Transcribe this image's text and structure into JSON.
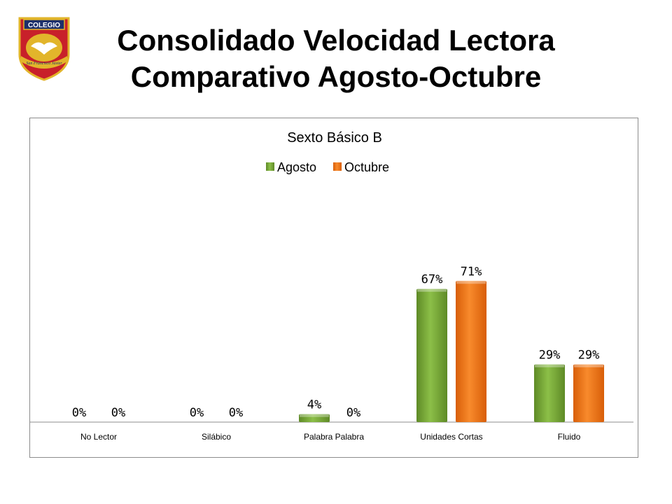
{
  "slide": {
    "title_line1": "Consolidado Velocidad Lectora",
    "title_line2": "Comparativo Agosto-Octubre",
    "logo_text": "COLEGIO",
    "logo_subtext": "San Francisco Javier"
  },
  "colors": {
    "agosto": "#7aa63a",
    "octubre": "#ef7418",
    "frame": "#8c8c8c"
  },
  "chart_data": {
    "type": "bar",
    "title": "Sexto Básico B",
    "categories": [
      "No Lector",
      "Silábico",
      "Palabra Palabra",
      "Unidades Cortas",
      "Fluido"
    ],
    "series": [
      {
        "name": "Agosto",
        "values": [
          0,
          0,
          4,
          67,
          29
        ]
      },
      {
        "name": "Octubre",
        "values": [
          0,
          0,
          0,
          71,
          29
        ]
      }
    ],
    "data_labels": [
      [
        "0%",
        "0%",
        "4%",
        "67%",
        "29%"
      ],
      [
        "0%",
        "0%",
        "0%",
        "71%",
        "29%"
      ]
    ],
    "legend_position": "top",
    "ylim": [
      0,
      100
    ],
    "grid": false
  }
}
